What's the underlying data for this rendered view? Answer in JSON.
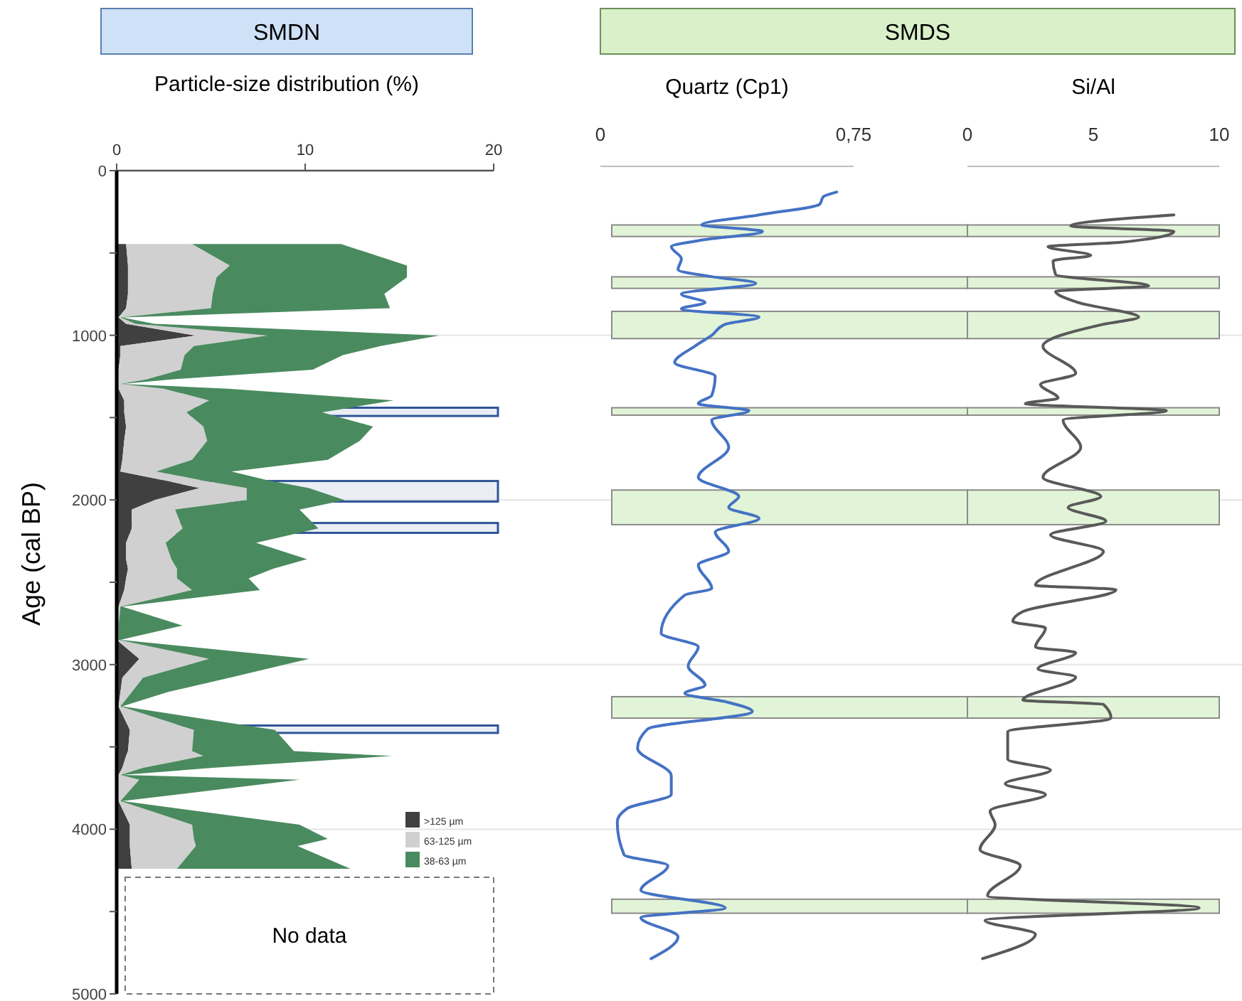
{
  "chart_data": [
    {
      "type": "area",
      "title": "SMDN",
      "subtitle": "Particle-size distribution (%)",
      "ylabel": "Age (cal BP)",
      "orientation": "horizontal",
      "stacked": true,
      "legend": "bottom right",
      "grid": "y",
      "xlim": [
        0,
        20
      ],
      "xticks": [
        0,
        10,
        20
      ],
      "ylim": [
        5000,
        0
      ],
      "yticks": [
        0,
        {
          "value": 500,
          "label": null
        },
        1000,
        {
          "value": 1500,
          "label": null
        },
        2000,
        {
          "value": 2500,
          "label": null
        },
        3000,
        {
          "value": 3500,
          "label": null
        },
        4000,
        {
          "value": 4500,
          "label": null
        },
        5000
      ],
      "x": [
        446,
        576,
        648,
        748,
        835,
        892,
        930,
        1002,
        1065,
        1120,
        1209,
        1267,
        1295,
        1324,
        1396,
        1468,
        1554,
        1641,
        1756,
        1828,
        1880,
        1928,
        2001,
        2058,
        2173,
        2260,
        2360,
        2418,
        2476,
        2547,
        2648,
        2763,
        2850,
        2965,
        3080,
        3167,
        3253,
        3397,
        3526,
        3555,
        3627,
        3670,
        3699,
        3829,
        3972,
        4059,
        4102,
        4240
      ],
      "series": [
        {
          "name": ">125 µm",
          "color": "#404040",
          "values": [
            0.5,
            0.6,
            0.6,
            0.6,
            0.5,
            0.1,
            0.5,
            4.2,
            0.2,
            0.2,
            0.1,
            0.1,
            0.1,
            0.1,
            0.4,
            0.4,
            0.5,
            0.4,
            0.3,
            0.2,
            2.5,
            4.4,
            2.0,
            0.8,
            0.8,
            0.5,
            0.5,
            0.6,
            0.5,
            0.4,
            0.1,
            0.0,
            0.0,
            1.2,
            0.3,
            0.2,
            0.1,
            0.7,
            0.6,
            0.5,
            0.3,
            0.1,
            0.1,
            0.1,
            0.7,
            0.7,
            0.7,
            0.8
          ]
        },
        {
          "name": "63-125 µm",
          "color": "#d0d0d0",
          "values": [
            3.5,
            5.4,
            4.7,
            4.5,
            4.5,
            0.1,
            0.5,
            3.8,
            3.9,
            3.4,
            3.3,
            1.5,
            0.1,
            2.4,
            4.5,
            3.3,
            4.1,
            4.4,
            3.7,
            1.9,
            2.0,
            2.5,
            4.9,
            2.3,
            2.7,
            2.1,
            2.4,
            2.6,
            2.7,
            3.6,
            0.1,
            0.1,
            0.1,
            3.7,
            1.1,
            0.6,
            0.1,
            3.4,
            3.4,
            4.1,
            1.1,
            0.1,
            1.1,
            0.1,
            3.3,
            3.4,
            3.5,
            2.4
          ]
        },
        {
          "name": "38-63 µm",
          "color": "#4a8a5f",
          "values": [
            7.9,
            9.4,
            10.1,
            9.1,
            9.5,
            0.1,
            1.0,
            9.1,
            9.9,
            8.4,
            7.0,
            1.4,
            0.1,
            3.4,
            9.8,
            7.2,
            9.0,
            8.1,
            7.2,
            4.0,
            3.5,
            3.3,
            5.2,
            6.6,
            7.2,
            4.8,
            7.2,
            5.1,
            3.8,
            3.6,
            0.1,
            3.4,
            0.1,
            5.3,
            4.6,
            1.9,
            0.1,
            4.3,
            5.4,
            10.0,
            3.7,
            0.1,
            8.5,
            0.1,
            5.7,
            7.1,
            5.4,
            9.2
          ]
        }
      ],
      "bands": [
        {
          "axis": "y",
          "from": 1440,
          "to": 1490,
          "color": "#2f5597"
        },
        {
          "axis": "y",
          "from": 1885,
          "to": 2010,
          "color": "#2f5597"
        },
        {
          "axis": "y",
          "from": 2140,
          "to": 2200,
          "color": "#2f5597"
        },
        {
          "axis": "y",
          "from": 3370,
          "to": 3415,
          "color": "#2f5597"
        }
      ],
      "annotations": [
        "No data"
      ]
    },
    {
      "type": "line",
      "xlabel": "Quartz (Cp1)",
      "orientation": "horizontal",
      "grid": "y",
      "tick_labels": "x",
      "xlim": [
        0,
        0.75
      ],
      "xticks": [
        0,
        {
          "value": 0.75,
          "label": "0,75"
        }
      ],
      "ylim": [
        5000,
        0
      ],
      "yticks": [
        0,
        1000,
        2000,
        3000,
        4000,
        5000
      ],
      "series": [
        {
          "color": "#4472c4",
          "x": [
            130,
            159,
            203,
            269,
            329,
            369,
            425,
            462,
            535,
            601,
            644,
            684,
            750,
            801,
            840,
            890,
            933,
            1000,
            1066,
            1166,
            1249,
            1365,
            1415,
            1458,
            1515,
            1681,
            1863,
            1979,
            2046,
            2112,
            2195,
            2312,
            2395,
            2537,
            2578,
            2810,
            2893,
            3009,
            3125,
            3175,
            3225,
            3285,
            3391,
            3508,
            3674,
            3789,
            3873,
            3956,
            4155,
            4221,
            4371,
            4478,
            4537,
            4653,
            4786
          ],
          "values": [
            0.7,
            0.66,
            0.65,
            0.47,
            0.3,
            0.48,
            0.29,
            0.21,
            0.24,
            0.23,
            0.33,
            0.46,
            0.24,
            0.31,
            0.24,
            0.47,
            0.37,
            0.33,
            0.28,
            0.22,
            0.34,
            0.33,
            0.29,
            0.44,
            0.33,
            0.38,
            0.29,
            0.41,
            0.38,
            0.47,
            0.34,
            0.38,
            0.29,
            0.33,
            0.25,
            0.18,
            0.29,
            0.26,
            0.31,
            0.25,
            0.37,
            0.45,
            0.14,
            0.11,
            0.21,
            0.21,
            0.08,
            0.05,
            0.07,
            0.2,
            0.12,
            0.37,
            0.12,
            0.23,
            0.15
          ]
        }
      ],
      "bands": [
        {
          "axis": "y",
          "from": 330,
          "to": 400,
          "color": "#e2f4d7"
        },
        {
          "axis": "y",
          "from": 645,
          "to": 715,
          "color": "#e2f4d7"
        },
        {
          "axis": "y",
          "from": 855,
          "to": 1020,
          "color": "#e2f4d7"
        },
        {
          "axis": "y",
          "from": 1440,
          "to": 1485,
          "color": "#e2f4d7"
        },
        {
          "axis": "y",
          "from": 1940,
          "to": 2150,
          "color": "#e2f4d7"
        },
        {
          "axis": "y",
          "from": 3195,
          "to": 3325,
          "color": "#e2f4d7"
        },
        {
          "axis": "y",
          "from": 4425,
          "to": 4510,
          "color": "#e2f4d7"
        }
      ]
    },
    {
      "type": "line",
      "title": "SMDS",
      "xlabel": "Si/Al",
      "orientation": "horizontal",
      "grid": "y",
      "tick_labels": "x",
      "xlim": [
        0,
        10
      ],
      "xticks": [
        0,
        5,
        10
      ],
      "ylim": [
        5000,
        0
      ],
      "yticks": [
        0,
        1000,
        2000,
        3000,
        4000,
        5000
      ],
      "series": [
        {
          "color": "#595959",
          "x": [
            269,
            336,
            369,
            435,
            462,
            515,
            548,
            631,
            700,
            734,
            801,
            890,
            933,
            1066,
            1232,
            1299,
            1382,
            1415,
            1458,
            1515,
            1681,
            1863,
            1979,
            2046,
            2129,
            2212,
            2312,
            2518,
            2545,
            2678,
            2738,
            2778,
            2894,
            2927,
            3026,
            3076,
            3216,
            3242,
            3325,
            3408,
            3575,
            3641,
            3724,
            3789,
            3889,
            3973,
            4123,
            4221,
            4404,
            4478,
            4554,
            4637,
            4786
          ],
          "values": [
            8.2,
            4.1,
            8.2,
            6.1,
            3.2,
            4.9,
            3.4,
            3.5,
            7.2,
            3.5,
            4.4,
            6.8,
            5.4,
            3.0,
            4.3,
            2.9,
            3.6,
            2.3,
            7.9,
            3.8,
            4.5,
            3.0,
            5.3,
            4.0,
            5.5,
            3.3,
            5.4,
            2.7,
            5.9,
            2.2,
            1.8,
            3.1,
            2.7,
            4.3,
            2.8,
            4.3,
            2.2,
            5.4,
            5.7,
            1.6,
            1.6,
            3.3,
            1.5,
            3.1,
            0.9,
            1.1,
            0.5,
            2.1,
            0.8,
            9.2,
            0.7,
            2.7,
            0.6
          ]
        }
      ],
      "bands": [
        {
          "axis": "y",
          "from": 330,
          "to": 400,
          "color": "#e2f4d7"
        },
        {
          "axis": "y",
          "from": 645,
          "to": 715,
          "color": "#e2f4d7"
        },
        {
          "axis": "y",
          "from": 855,
          "to": 1020,
          "color": "#e2f4d7"
        },
        {
          "axis": "y",
          "from": 1440,
          "to": 1485,
          "color": "#e2f4d7"
        },
        {
          "axis": "y",
          "from": 1940,
          "to": 2150,
          "color": "#e2f4d7"
        },
        {
          "axis": "y",
          "from": 3195,
          "to": 3325,
          "color": "#e2f4d7"
        },
        {
          "axis": "y",
          "from": 4425,
          "to": 4510,
          "color": "#e2f4d7"
        }
      ]
    }
  ]
}
